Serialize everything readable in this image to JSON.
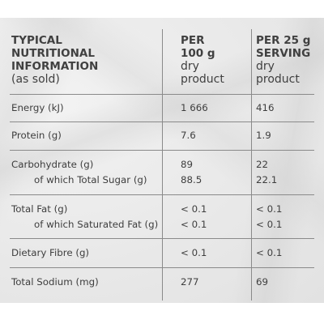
{
  "header": {
    "col1": {
      "line1": "TYPICAL",
      "line2": "NUTRITIONAL",
      "line3": "INFORMATION",
      "line4": "(as sold)"
    },
    "col2": {
      "line1": "PER",
      "line2": "100 g",
      "line3": "dry",
      "line4": "product"
    },
    "col3": {
      "line1": "PER 25 g",
      "line2": "SERVING",
      "line3": "dry",
      "line4": "product"
    }
  },
  "rows": [
    {
      "label": "Energy (kJ)",
      "per100": "1 666",
      "serving": "416"
    },
    {
      "label": "Protein (g)",
      "per100": "7.6",
      "serving": "1.9"
    },
    {
      "label": "Carbohydrate (g)",
      "per100": "89",
      "serving": "22",
      "sub_label": "of which Total Sugar (g)",
      "sub_per100": "88.5",
      "sub_serving": "22.1"
    },
    {
      "label": "Total Fat (g)",
      "per100": "< 0.1",
      "serving": "< 0.1",
      "sub_label": "of which Saturated Fat (g)",
      "sub_per100": "< 0.1",
      "sub_serving": "< 0.1"
    },
    {
      "label": "Dietary Fibre (g)",
      "per100": "< 0.1",
      "serving": "< 0.1"
    },
    {
      "label": "Total Sodium (mg)",
      "per100": "277",
      "serving": "69"
    }
  ]
}
